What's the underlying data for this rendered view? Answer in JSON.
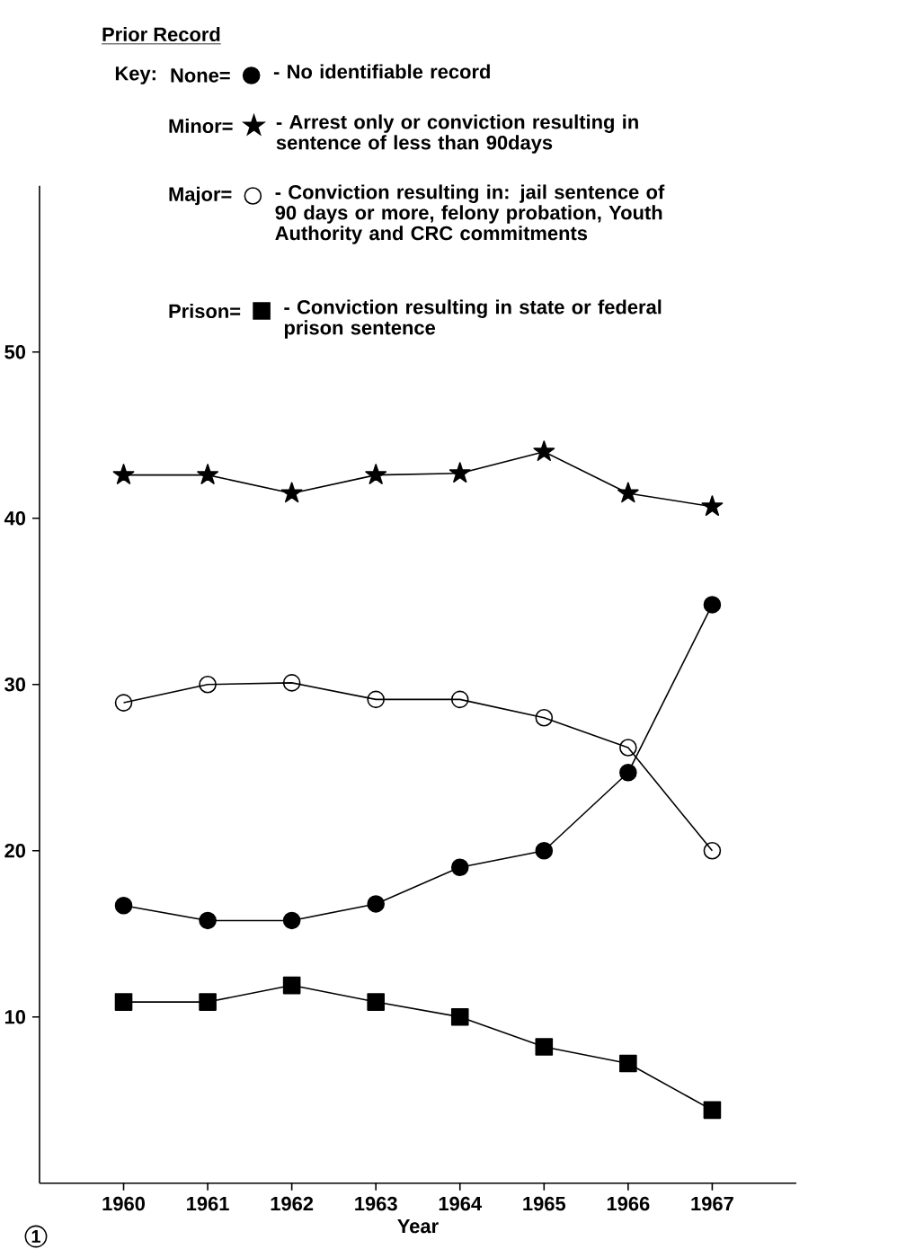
{
  "chart_data": {
    "type": "line",
    "legend_title": "Prior Record",
    "xlabel": "Year",
    "categories": [
      "1960",
      "1961",
      "1962",
      "1963",
      "1964",
      "1965",
      "1966",
      "1967"
    ],
    "series": [
      {
        "name": "None=",
        "color": "#000000",
        "marker": "circle",
        "values": [
          16.7,
          15.8,
          15.8,
          16.8,
          19.0,
          20.0,
          24.7,
          34.8
        ]
      },
      {
        "name": "Minor=",
        "color": "#000000",
        "marker": "star",
        "values": [
          42.6,
          42.6,
          41.5,
          42.6,
          42.7,
          44.0,
          41.5,
          40.7
        ]
      },
      {
        "name": "Major=",
        "color": "#000000",
        "marker": "open circle",
        "values": [
          28.9,
          30.0,
          30.1,
          29.1,
          29.1,
          28.0,
          26.2,
          20.0
        ]
      },
      {
        "name": "Prison=",
        "color": "#000000",
        "marker": "square",
        "values": [
          10.9,
          10.9,
          11.9,
          10.9,
          10.0,
          8.2,
          7.2,
          4.4
        ]
      }
    ],
    "ylim": [
      0,
      60
    ],
    "yticks": [
      10,
      20,
      30,
      40,
      50
    ],
    "legend": "top",
    "line_style": "solid",
    "annotations": [
      "Key:",
      "- No identifiable record",
      "- Arrest only or conviction resulting in sentence of less than 90days",
      "- Conviction resulting in: jail sentence of 90 days or more, felony probation, Youth Authority and CRC commitments",
      "- Conviction resulting in state or federal prison sentence",
      "1"
    ]
  }
}
